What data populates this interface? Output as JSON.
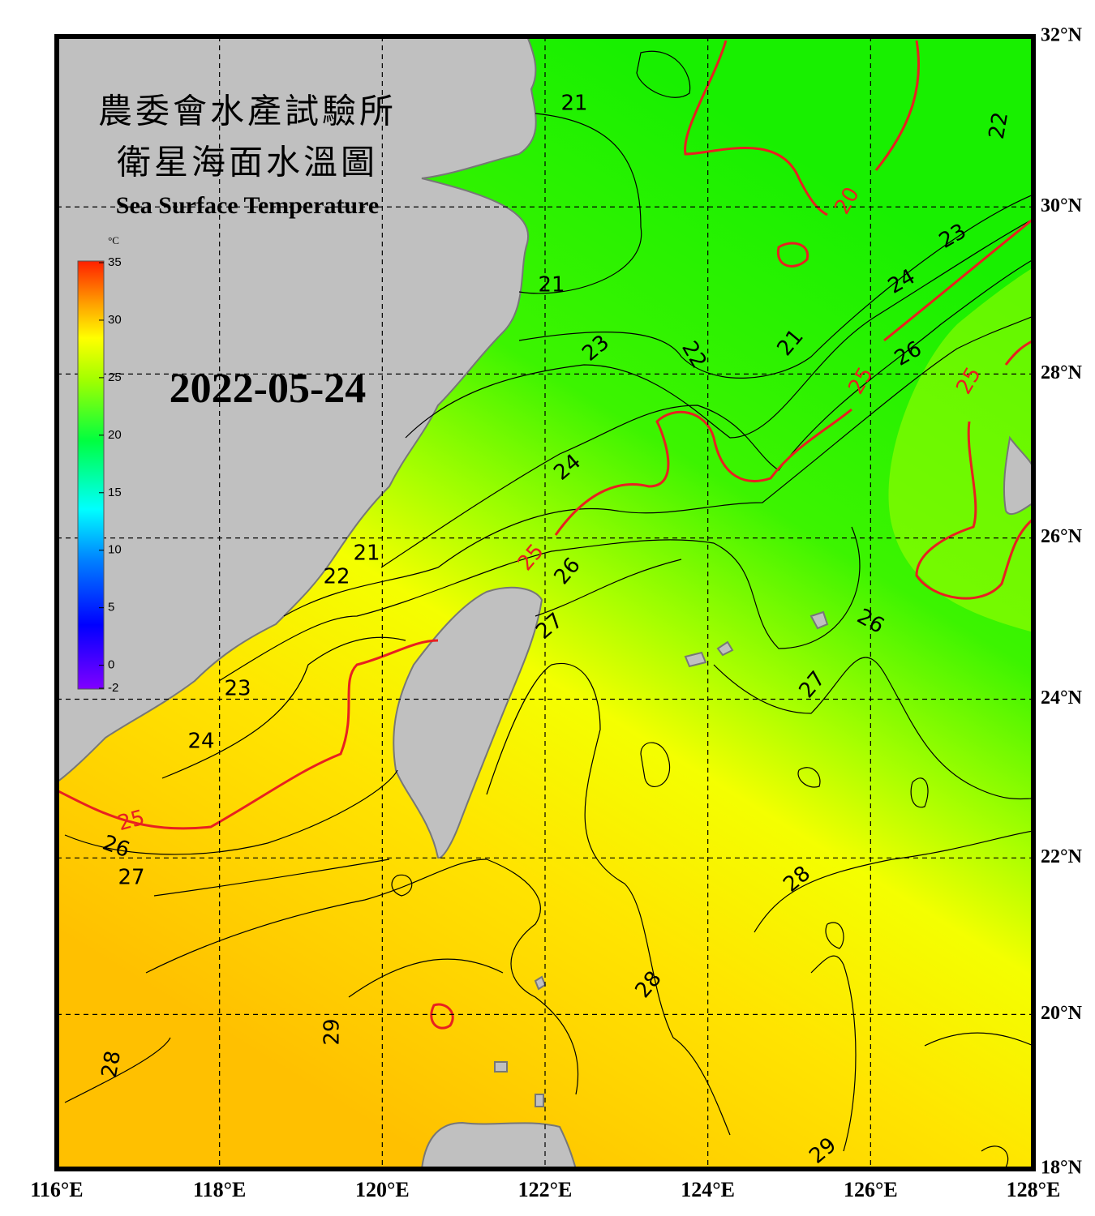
{
  "header": {
    "title_zh_1": "農委會水產試驗所",
    "title_zh_2": "衛星海面水溫圖",
    "title_en": "Sea Surface Temperature",
    "date": "2022-05-24"
  },
  "colorbar": {
    "unit": "°C",
    "ticks": [
      35,
      30,
      25,
      20,
      15,
      10,
      5,
      0,
      -2
    ]
  },
  "lon_ticks": [
    {
      "value": 116,
      "label": "116°E"
    },
    {
      "value": 118,
      "label": "118°E"
    },
    {
      "value": 120,
      "label": "120°E"
    },
    {
      "value": 122,
      "label": "122°E"
    },
    {
      "value": 124,
      "label": "124°E"
    },
    {
      "value": 126,
      "label": "126°E"
    },
    {
      "value": 128,
      "label": "128°E"
    }
  ],
  "lat_ticks": [
    {
      "value": 32,
      "label": "32°N"
    },
    {
      "value": 30,
      "label": "30°N"
    },
    {
      "value": 28,
      "label": "28°N"
    },
    {
      "value": 26,
      "label": "26°N"
    },
    {
      "value": 24,
      "label": "24°N"
    },
    {
      "value": 22,
      "label": "22°N"
    },
    {
      "value": 20,
      "label": "20°N"
    },
    {
      "value": 18,
      "label": "18°N"
    }
  ],
  "contour_labels": [
    21,
    21,
    22,
    20,
    23,
    24,
    21,
    22,
    23,
    26,
    25,
    25,
    24,
    25,
    26,
    21,
    22,
    27,
    26,
    27,
    23,
    24,
    25,
    26,
    27,
    28,
    28,
    29,
    28,
    29
  ]
}
